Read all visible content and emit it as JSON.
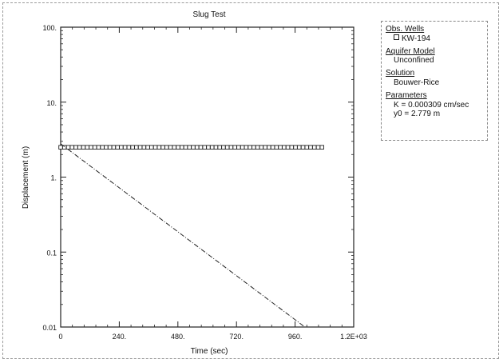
{
  "chart_data": {
    "type": "line",
    "title": "Slug Test",
    "xlabel": "Time (sec)",
    "ylabel": "Displacement (m)",
    "xlim": [
      0,
      1200
    ],
    "ylim": [
      0.01,
      100
    ],
    "y_scale": "log",
    "x_ticks": [
      0,
      240,
      480,
      720,
      960,
      1200
    ],
    "x_tick_labels": [
      "0",
      "240.",
      "480.",
      "720.",
      "960.",
      "1.2E+03"
    ],
    "y_ticks": [
      0.01,
      0.1,
      1,
      10,
      100
    ],
    "y_tick_labels": [
      "0.01",
      "0.1",
      "1.",
      "10.",
      "100."
    ],
    "grid": false,
    "legend_placement": "outside-right",
    "series": [
      {
        "name": "KW-194",
        "kind": "observations",
        "marker": "square",
        "x_range": [
          0,
          1070
        ],
        "y_constant": 2.5,
        "point_count": 70
      },
      {
        "kind": "fit",
        "x": [
          0,
          1000
        ],
        "y": [
          2.779,
          0.01
        ]
      }
    ],
    "colors": {
      "observations": "#222222",
      "fit": "#222222"
    }
  },
  "legend": {
    "obs_heading": "Obs. Wells",
    "obs_well": "KW-194",
    "model_heading": "Aquifer Model",
    "model_value": "Unconfined",
    "solution_heading": "Solution",
    "solution_value": "Bouwer-Rice",
    "params_heading": "Parameters",
    "param_k": "K  = 0.000309 cm/sec",
    "param_y0": "y0 = 2.779 m"
  }
}
